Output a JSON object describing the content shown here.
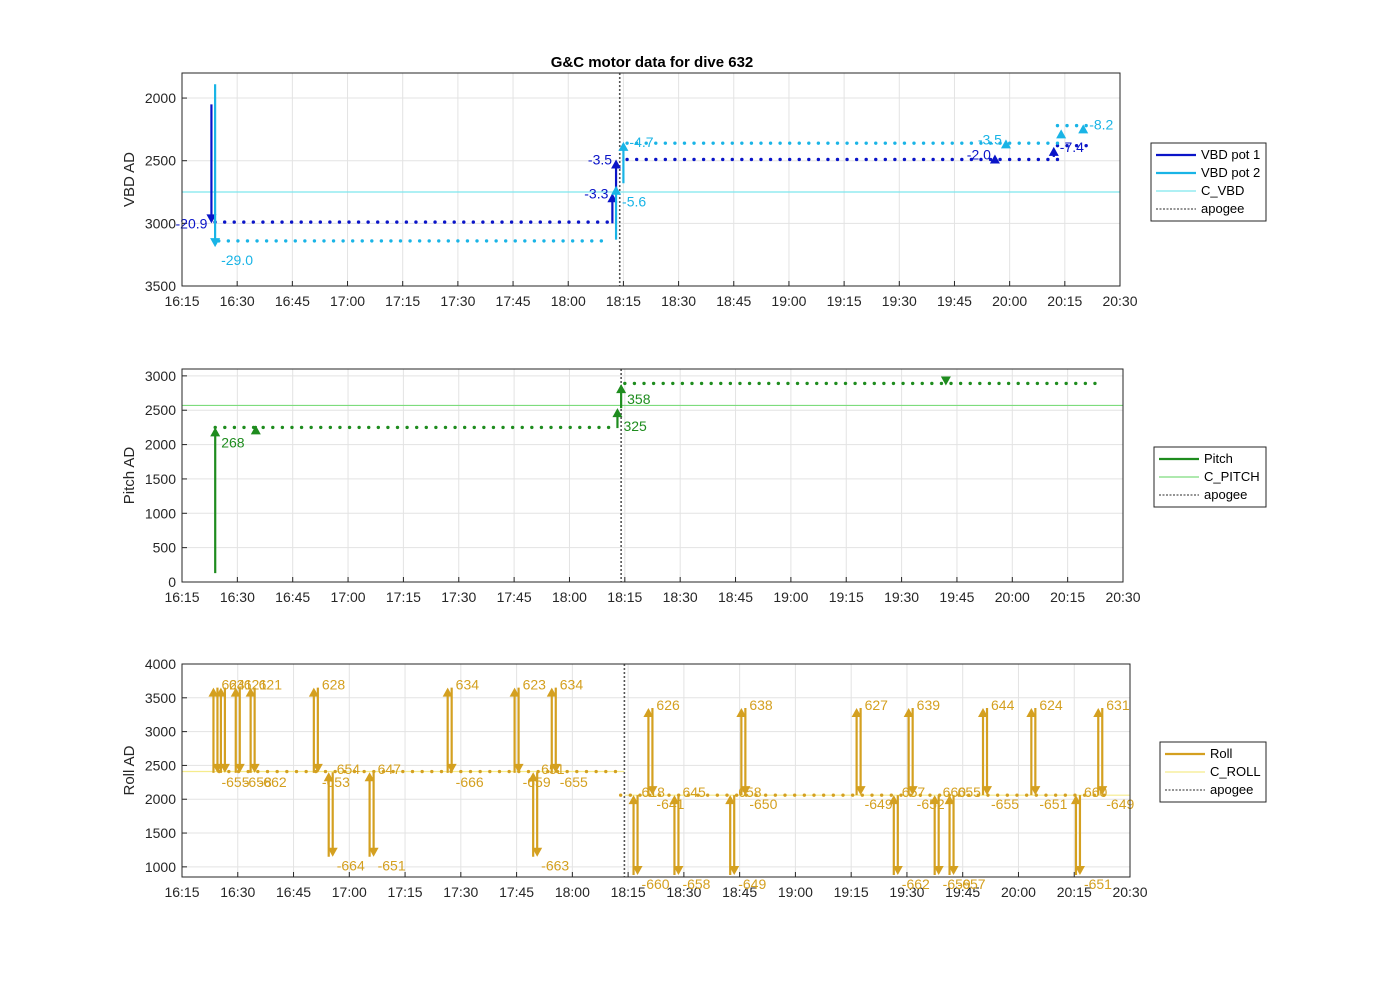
{
  "title": "G&C motor data for dive 632",
  "colors": {
    "vbd1": "#0a14c8",
    "vbd2": "#19b4e6",
    "c_vbd": "#7de6ee",
    "pitch": "#1e8c1e",
    "c_pitch": "#7ddc7d",
    "roll": "#d4a020",
    "c_roll": "#f5ec8c",
    "apogee": "#555555",
    "grid": "#e3e3e3",
    "axis": "#262626"
  },
  "chart_data": [
    {
      "type": "line",
      "ylabel": "VBD AD",
      "xlabel": "",
      "xlim": [
        "16:15",
        "20:30"
      ],
      "ylim": [
        1800,
        3500
      ],
      "y_reversed": true,
      "grid": true,
      "legend_placement": "outside-right",
      "xticks": [
        "16:15",
        "16:30",
        "16:45",
        "17:00",
        "17:15",
        "17:30",
        "17:45",
        "18:00",
        "18:15",
        "18:30",
        "18:45",
        "19:00",
        "19:15",
        "19:30",
        "19:45",
        "20:00",
        "20:15",
        "20:30"
      ],
      "yticks": [
        2000,
        2500,
        3000,
        3500
      ],
      "apogee": "18:14",
      "reference_lines": [
        {
          "name": "C_VBD",
          "y": 2750
        }
      ],
      "series": [
        {
          "name": "VBD pot 1",
          "x_start": "16:24",
          "x_end": "20:23",
          "segments": [
            {
              "from": "16:24",
              "to": "18:11",
              "y": 2990
            },
            {
              "from": "18:16",
              "to": "20:13",
              "y": 2490
            },
            {
              "from": "20:13",
              "to": "20:23",
              "y": 2380
            }
          ]
        },
        {
          "name": "VBD pot 2",
          "x_start": "16:25",
          "x_end": "20:23",
          "segments": [
            {
              "from": "16:25",
              "to": "18:11",
              "y": 3140
            },
            {
              "from": "18:16",
              "to": "20:13",
              "y": 2360
            },
            {
              "from": "20:13",
              "to": "20:23",
              "y": 2220
            }
          ]
        }
      ],
      "events": [
        {
          "series": "VBD pot 1",
          "x": "16:23",
          "y_from": 2050,
          "y_to": 3000,
          "label": "-20.9"
        },
        {
          "series": "VBD pot 2",
          "x": "16:24",
          "y_from": 1890,
          "y_to": 3190,
          "label": "-29.0"
        },
        {
          "series": "VBD pot 1",
          "x": "18:12",
          "y_from": 3000,
          "y_to": 2760,
          "label": "-3.3"
        },
        {
          "series": "VBD pot 1",
          "x": "18:13",
          "y_from": 2760,
          "y_to": 2490,
          "label": "-3.5"
        },
        {
          "series": "VBD pot 2",
          "x": "18:13",
          "y_from": 3130,
          "y_to": 2700,
          "label": "-5.6"
        },
        {
          "series": "VBD pot 2",
          "x": "18:15",
          "y_from": 2680,
          "y_to": 2350,
          "label": "-4.7"
        },
        {
          "series": "VBD pot 1",
          "x": "19:56",
          "y_from": 2500,
          "y_to": 2450,
          "label": "-2.0"
        },
        {
          "series": "VBD pot 2",
          "x": "19:59",
          "y_from": 2370,
          "y_to": 2330,
          "label": "-3.5"
        },
        {
          "series": "VBD pot 1",
          "x": "20:12",
          "y_from": 2470,
          "y_to": 2390,
          "label": "-7.4"
        },
        {
          "series": "VBD pot 2",
          "x": "20:14",
          "y_from": 2300,
          "y_to": 2250,
          "label": ""
        },
        {
          "series": "VBD pot 2",
          "x": "20:20",
          "y_from": 2250,
          "y_to": 2210,
          "label": "-8.2"
        }
      ]
    },
    {
      "type": "line",
      "ylabel": "Pitch AD",
      "xlabel": "",
      "xlim": [
        "16:15",
        "20:30"
      ],
      "ylim": [
        0,
        3100
      ],
      "grid": true,
      "legend_placement": "outside-right",
      "xticks": [
        "16:15",
        "16:30",
        "16:45",
        "17:00",
        "17:15",
        "17:30",
        "17:45",
        "18:00",
        "18:15",
        "18:30",
        "18:45",
        "19:00",
        "19:15",
        "19:30",
        "19:45",
        "20:00",
        "20:15",
        "20:30"
      ],
      "yticks": [
        0,
        500,
        1000,
        1500,
        2000,
        2500,
        3000
      ],
      "apogee": "18:14",
      "reference_lines": [
        {
          "name": "C_PITCH",
          "y": 2570
        }
      ],
      "series": [
        {
          "name": "Pitch",
          "segments": [
            {
              "from": "16:24",
              "to": "18:12",
              "y": 2250
            },
            {
              "from": "18:15",
              "to": "20:23",
              "y": 2890
            }
          ]
        }
      ],
      "events": [
        {
          "series": "Pitch",
          "x": "16:24",
          "y_from": 130,
          "y_to": 2250,
          "label": "268"
        },
        {
          "series": "Pitch",
          "x": "16:35",
          "y_from": 2270,
          "y_to": 2280,
          "label": ""
        },
        {
          "series": "Pitch",
          "x": "18:13",
          "y_from": 2240,
          "y_to": 2530,
          "label": "325"
        },
        {
          "series": "Pitch",
          "x": "18:14",
          "y_from": 2530,
          "y_to": 2880,
          "label": "358"
        },
        {
          "series": "Pitch",
          "x": "19:42",
          "y_from": 2910,
          "y_to": 2860,
          "label": ""
        }
      ]
    },
    {
      "type": "line",
      "ylabel": "Roll AD",
      "xlabel": "",
      "xlim": [
        "16:15",
        "20:30"
      ],
      "ylim": [
        850,
        4000
      ],
      "grid": true,
      "legend_placement": "outside-right",
      "xticks": [
        "16:15",
        "16:30",
        "16:45",
        "17:00",
        "17:15",
        "17:30",
        "17:45",
        "18:00",
        "18:15",
        "18:30",
        "18:45",
        "19:00",
        "19:15",
        "19:30",
        "19:45",
        "20:00",
        "20:15",
        "20:30"
      ],
      "yticks": [
        1000,
        1500,
        2000,
        2500,
        3000,
        3500,
        4000
      ],
      "apogee": "18:14",
      "reference_lines": [
        {
          "name": "C_ROLL",
          "from": "16:15",
          "to": "18:14",
          "y": 2410
        },
        {
          "name": "C_ROLL",
          "from": "18:14",
          "to": "20:30",
          "y": 2060
        }
      ],
      "series": [
        {
          "name": "Roll",
          "segments": [
            {
              "from": "16:25",
              "to": "18:12",
              "y": 2410
            },
            {
              "from": "18:13",
              "to": "20:23",
              "y": 2060
            }
          ]
        }
      ],
      "events": [
        {
          "x": "16:24",
          "y_high": 3650,
          "y_low": 2390,
          "up_label": "624",
          "down_label": "-655"
        },
        {
          "x": "16:26",
          "y_high": 3650,
          "y_low": 2390,
          "up_label": "631",
          "down_label": ""
        },
        {
          "x": "16:30",
          "y_high": 3650,
          "y_low": 2390,
          "up_label": "621",
          "down_label": "-658"
        },
        {
          "x": "16:34",
          "y_high": 3650,
          "y_low": 2390,
          "up_label": "621",
          "down_label": "-662"
        },
        {
          "x": "16:51",
          "y_high": 3650,
          "y_low": 2390,
          "up_label": "628",
          "down_label": "-653"
        },
        {
          "x": "16:55",
          "y_high": 2400,
          "y_low": 1150,
          "up_label": "654",
          "down_label": "-664"
        },
        {
          "x": "17:06",
          "y_high": 2400,
          "y_low": 1150,
          "up_label": "647",
          "down_label": "-651"
        },
        {
          "x": "17:27",
          "y_high": 3650,
          "y_low": 2390,
          "up_label": "634",
          "down_label": "-666"
        },
        {
          "x": "17:45",
          "y_high": 3650,
          "y_low": 2390,
          "up_label": "623",
          "down_label": "-659"
        },
        {
          "x": "17:50",
          "y_high": 2400,
          "y_low": 1150,
          "up_label": "651",
          "down_label": "-663"
        },
        {
          "x": "17:55",
          "y_high": 3650,
          "y_low": 2390,
          "up_label": "634",
          "down_label": "-655"
        },
        {
          "x": "18:17",
          "y_high": 2060,
          "y_low": 880,
          "up_label": "618",
          "down_label": "-660"
        },
        {
          "x": "18:21",
          "y_high": 3350,
          "y_low": 2060,
          "up_label": "626",
          "down_label": "-641"
        },
        {
          "x": "18:28",
          "y_high": 2060,
          "y_low": 880,
          "up_label": "645",
          "down_label": "-658"
        },
        {
          "x": "18:46",
          "y_high": 3350,
          "y_low": 2060,
          "up_label": "638",
          "down_label": "-650"
        },
        {
          "x": "18:43",
          "y_high": 2060,
          "y_low": 880,
          "up_label": "658",
          "down_label": "-649"
        },
        {
          "x": "19:17",
          "y_high": 3350,
          "y_low": 2060,
          "up_label": "627",
          "down_label": "-649"
        },
        {
          "x": "19:27",
          "y_high": 2060,
          "y_low": 880,
          "up_label": "657",
          "down_label": "-662"
        },
        {
          "x": "19:31",
          "y_high": 3350,
          "y_low": 2060,
          "up_label": "639",
          "down_label": "-652"
        },
        {
          "x": "19:38",
          "y_high": 2060,
          "y_low": 880,
          "up_label": "660",
          "down_label": "-659"
        },
        {
          "x": "19:42",
          "y_high": 2060,
          "y_low": 880,
          "up_label": "655",
          "down_label": "-657"
        },
        {
          "x": "19:51",
          "y_high": 3350,
          "y_low": 2060,
          "up_label": "644",
          "down_label": "-655"
        },
        {
          "x": "20:04",
          "y_high": 3350,
          "y_low": 2060,
          "up_label": "624",
          "down_label": "-651"
        },
        {
          "x": "20:16",
          "y_high": 2060,
          "y_low": 880,
          "up_label": "660",
          "down_label": "-651"
        },
        {
          "x": "20:22",
          "y_high": 3350,
          "y_low": 2060,
          "up_label": "631",
          "down_label": "-649"
        }
      ]
    }
  ],
  "legends": [
    {
      "items": [
        {
          "label": "VBD pot 1",
          "color": "#0a14c8",
          "style": "thick"
        },
        {
          "label": "VBD pot 2",
          "color": "#19b4e6",
          "style": "thick"
        },
        {
          "label": "C_VBD",
          "color": "#7de6ee",
          "style": "thin"
        },
        {
          "label": "apogee",
          "color": "#555555",
          "style": "dotted"
        }
      ]
    },
    {
      "items": [
        {
          "label": "Pitch",
          "color": "#1e8c1e",
          "style": "thick"
        },
        {
          "label": "C_PITCH",
          "color": "#7ddc7d",
          "style": "thin"
        },
        {
          "label": "apogee",
          "color": "#555555",
          "style": "dotted"
        }
      ]
    },
    {
      "items": [
        {
          "label": "Roll",
          "color": "#d4a020",
          "style": "thick"
        },
        {
          "label": "C_ROLL",
          "color": "#f5ec8c",
          "style": "thin"
        },
        {
          "label": "apogee",
          "color": "#555555",
          "style": "dotted"
        }
      ]
    }
  ]
}
